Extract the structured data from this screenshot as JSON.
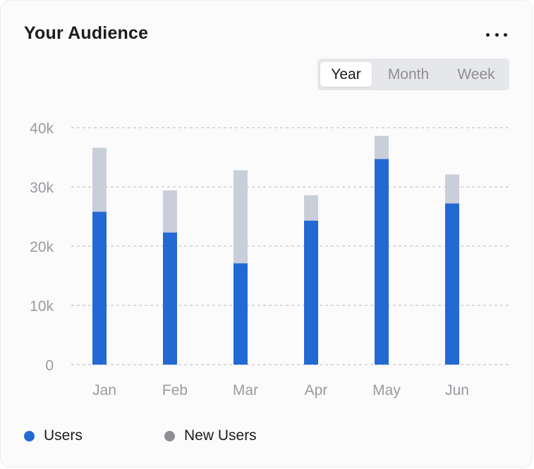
{
  "header": {
    "title": "Your Audience",
    "menu_icon": "more-horizontal-icon"
  },
  "period_tabs": {
    "options": [
      "Year",
      "Month",
      "Week"
    ],
    "selected": "Year"
  },
  "colors": {
    "users": "#2369d4",
    "new_users": "#c9ced8",
    "legend_new_users_dot": "#8e8e93",
    "grid": "#c7c7cc",
    "tick_label": "#9a9aa0"
  },
  "chart_data": {
    "type": "bar",
    "stacked": true,
    "categories": [
      "Jan",
      "Feb",
      "Mar",
      "Apr",
      "May",
      "Jun"
    ],
    "series": [
      {
        "name": "Users",
        "values": [
          25800,
          22300,
          17100,
          24300,
          34700,
          27200
        ]
      },
      {
        "name": "New Users",
        "values": [
          10800,
          7100,
          15700,
          4300,
          3900,
          4900
        ]
      }
    ],
    "y_ticks": [
      "0",
      "10k",
      "20k",
      "30k",
      "40k"
    ],
    "y_tick_values": [
      0,
      10000,
      20000,
      30000,
      40000
    ],
    "ylim": [
      0,
      40000
    ],
    "grid": true,
    "grid_style": "dashed",
    "legend": "bottom-left",
    "xlabel": "",
    "ylabel": ""
  }
}
